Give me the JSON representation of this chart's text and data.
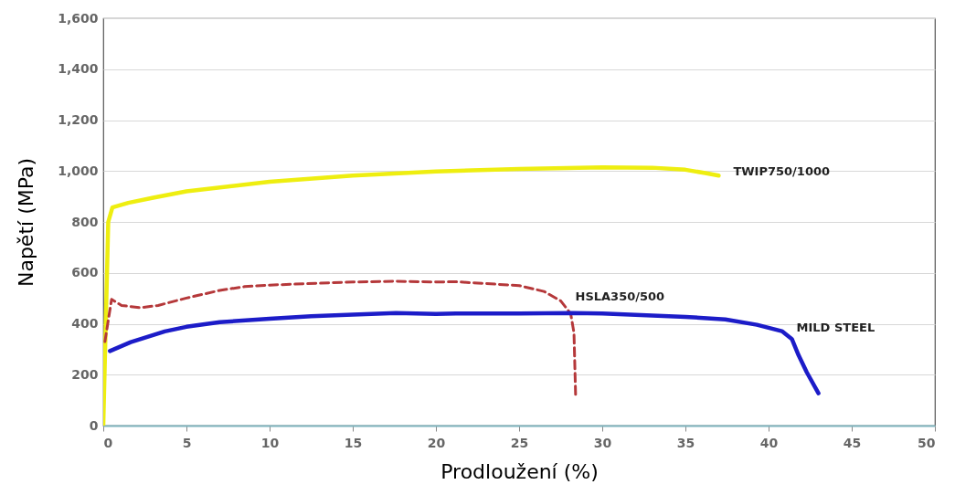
{
  "chart_data": {
    "type": "line",
    "xlabel": "Prodloužení (%)",
    "ylabel": "Napětí (MPa)",
    "xlim": [
      0,
      50
    ],
    "xticks": [
      0,
      5,
      10,
      15,
      20,
      25,
      30,
      35,
      40,
      45,
      50
    ],
    "ylim": [
      0,
      1600
    ],
    "yticks": [
      0,
      200,
      400,
      600,
      800,
      {
        "value": 1000,
        "label": "1,000"
      },
      {
        "value": 1200,
        "label": "1,200"
      },
      {
        "value": 1400,
        "label": "1,400"
      },
      {
        "value": 1600,
        "label": "1,600"
      }
    ],
    "grid": "y",
    "legend": false,
    "marker": "none",
    "series": [
      {
        "name": "TWIP750/1000",
        "color": "#eeee10",
        "line_style": "solid",
        "x": [
          0,
          0.15,
          0.3,
          0.55,
          1.5,
          3,
          5,
          10,
          15,
          20,
          25,
          30,
          33,
          35,
          36.2,
          37
        ],
        "values": [
          0,
          400,
          800,
          857,
          875,
          895,
          920,
          958,
          982,
          998,
          1008,
          1014,
          1013,
          1005,
          992,
          982
        ]
      },
      {
        "name": "HSLA350/500",
        "color": "#b5383a",
        "line_style": "dashed",
        "x": [
          0.1,
          0.5,
          1.1,
          2.2,
          3.3,
          5,
          7,
          8.5,
          10,
          15,
          17.6,
          20,
          21.2,
          25,
          26.5,
          27.5,
          28.1,
          28.3,
          28.4
        ],
        "values": [
          330,
          496,
          472,
          463,
          472,
          501,
          531,
          546,
          552,
          564,
          567,
          564,
          565,
          550,
          527,
          490,
          440,
          365,
          115
        ]
      },
      {
        "name": "MILD STEEL",
        "color": "#1c1cc8",
        "line_style": "solid",
        "x": [
          0.4,
          1.65,
          3.7,
          5,
          7,
          10,
          12.5,
          15,
          17.6,
          20,
          21.2,
          25,
          28.2,
          30,
          35,
          37.4,
          39.3,
          40.8,
          41.4,
          41.8,
          42.3,
          43
        ],
        "values": [
          293,
          328,
          370,
          388,
          406,
          420,
          430,
          436,
          442,
          439,
          440,
          440,
          442,
          440,
          427,
          417,
          396,
          371,
          340,
          277,
          209,
          127
        ]
      }
    ]
  }
}
